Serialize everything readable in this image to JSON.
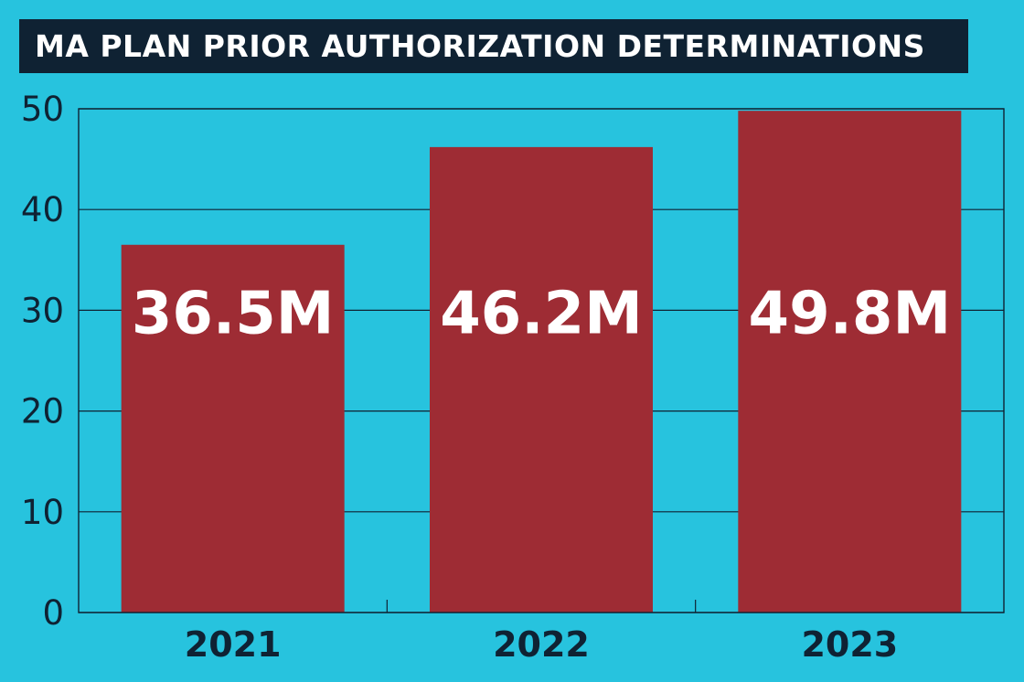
{
  "chart_data": {
    "type": "bar",
    "title": "MA PLAN PRIOR AUTHORIZATION DETERMINATIONS",
    "categories": [
      "2021",
      "2022",
      "2023"
    ],
    "values": [
      36.5,
      46.2,
      49.8
    ],
    "data_labels": [
      "36.5M",
      "46.2M",
      "49.8M"
    ],
    "ylim": [
      0,
      50
    ],
    "yticks": [
      "0",
      "10",
      "20",
      "30",
      "40",
      "50"
    ],
    "xlabel": "",
    "ylabel": "",
    "grid": true,
    "colors": {
      "background": "#27c3de",
      "bar": "#9e2c34",
      "title_bar": "#0f2233",
      "text": "#0f2233",
      "label": "#ffffff"
    }
  }
}
